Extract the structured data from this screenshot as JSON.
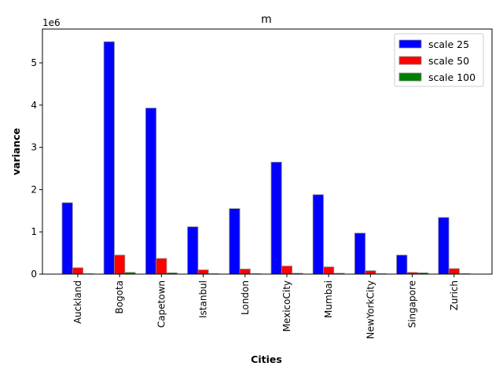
{
  "chart_data": {
    "type": "bar",
    "title": "m",
    "xlabel": "Cities",
    "ylabel": "variance",
    "y_offset_text": "1e6",
    "y_scale": 1000000,
    "ylim": [
      0,
      5800000
    ],
    "yticks": [
      0,
      1000000,
      2000000,
      3000000,
      4000000,
      5000000
    ],
    "ytick_labels": [
      "0",
      "1",
      "2",
      "3",
      "4",
      "5"
    ],
    "legend_position": "top-right",
    "grid": false,
    "categories": [
      "Auckland",
      "Bogota",
      "Capetown",
      "Istanbul",
      "London",
      "MexicoCity",
      "Mumbai",
      "NewYorkCity",
      "Singapore",
      "Zurich"
    ],
    "series": [
      {
        "name": "scale 25",
        "color": "#0000ff",
        "values": [
          1690000,
          5500000,
          3930000,
          1120000,
          1550000,
          2650000,
          1880000,
          970000,
          450000,
          1340000
        ]
      },
      {
        "name": "scale 50",
        "color": "#ff0000",
        "values": [
          150000,
          450000,
          370000,
          100000,
          120000,
          190000,
          170000,
          80000,
          40000,
          130000
        ]
      },
      {
        "name": "scale 100",
        "color": "#008000",
        "values": [
          10000,
          40000,
          30000,
          10000,
          10000,
          20000,
          20000,
          10000,
          30000,
          10000
        ]
      }
    ]
  }
}
